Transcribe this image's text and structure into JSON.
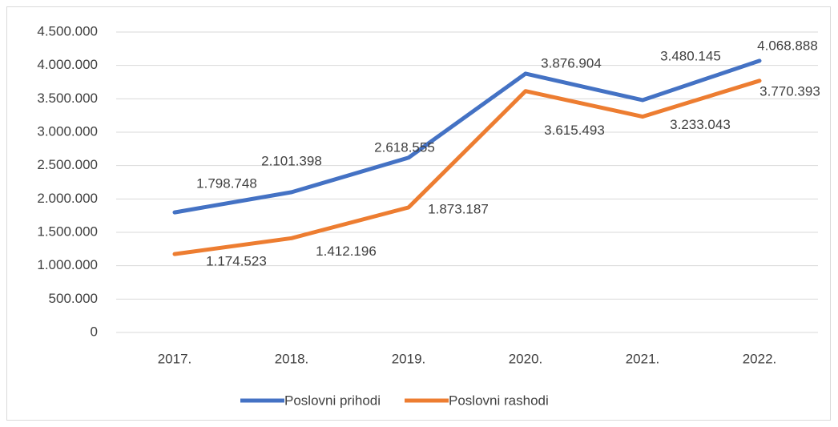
{
  "chart_data": {
    "type": "line",
    "categories": [
      "2017.",
      "2018.",
      "2019.",
      "2020.",
      "2021.",
      "2022."
    ],
    "series": [
      {
        "name": "Poslovni prihodi",
        "color": "#4472c4",
        "values": [
          1798748,
          2101398,
          2618555,
          3876904,
          3480145,
          4068888
        ],
        "value_labels": [
          "1.798.748",
          "2.101.398",
          "2.618.555",
          "3.876.904",
          "3.480.145",
          "4.068.888"
        ]
      },
      {
        "name": "Poslovni rashodi",
        "color": "#ed7d31",
        "values": [
          1174523,
          1412196,
          1873187,
          3615493,
          3233043,
          3770393
        ],
        "value_labels": [
          "1.174.523",
          "1.412.196",
          "1.873.187",
          "3.615.493",
          "3.233.043",
          "3.770.393"
        ]
      }
    ],
    "ylim": [
      0,
      4500000
    ],
    "yticks": [
      0,
      {
        "value": 500000,
        "label": "500.000"
      },
      {
        "value": 1000000,
        "label": "1.000.000"
      },
      {
        "value": 1500000,
        "label": "1.500.000"
      },
      {
        "value": 2000000,
        "label": "2.000.000"
      },
      {
        "value": 2500000,
        "label": "2.500.000"
      },
      {
        "value": 3000000,
        "label": "3.000.000"
      },
      {
        "value": 3500000,
        "label": "3.500.000"
      },
      {
        "value": 4000000,
        "label": "4.000.000"
      },
      {
        "value": 4500000,
        "label": "4.500.000"
      }
    ],
    "grid": true,
    "legend": "bottom"
  }
}
